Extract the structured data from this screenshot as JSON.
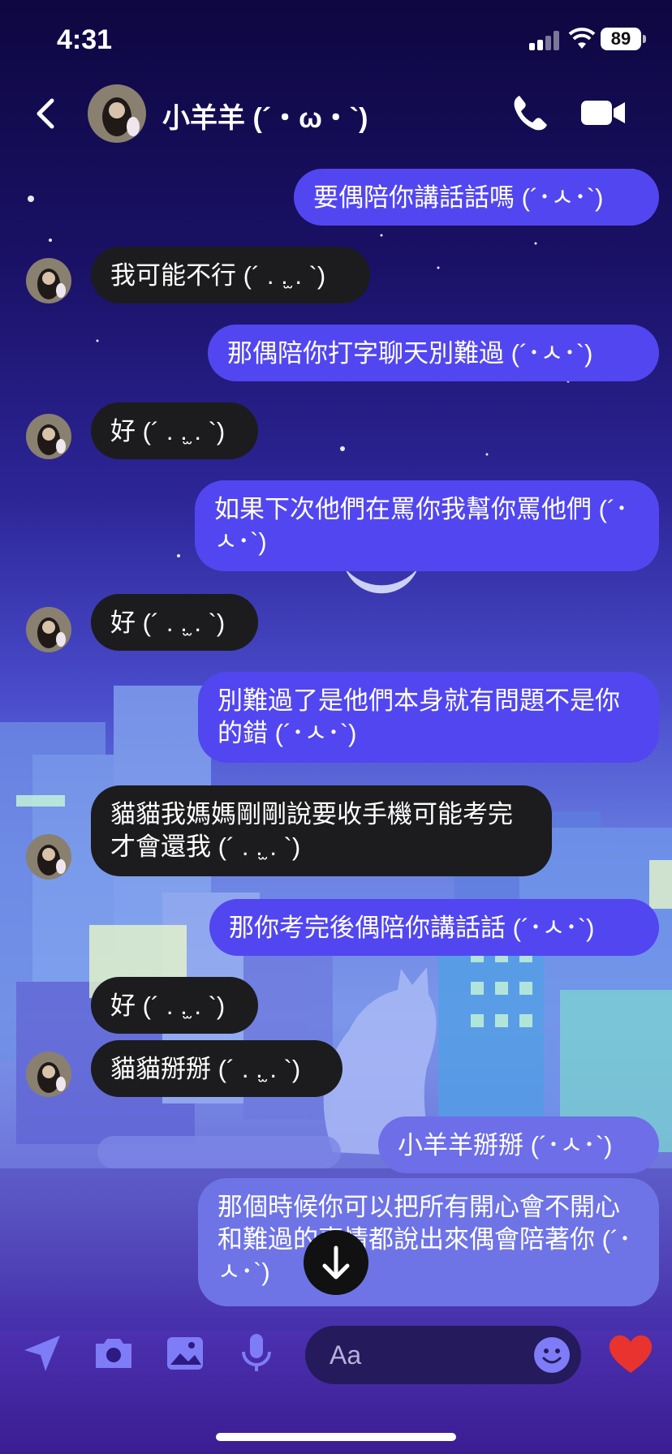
{
  "status_bar": {
    "time": "4:31",
    "battery": "89"
  },
  "header": {
    "contact_name": "小羊羊 (´・ω・`)"
  },
  "messages": [
    {
      "dir": "out",
      "text": "要偶陪你講話話嗎 (´･ㅅ･`)"
    },
    {
      "dir": "in",
      "text": "我可能不行 (´ . .̫ . `)"
    },
    {
      "dir": "out",
      "text": "那偶陪你打字聊天別難過 (´･ㅅ･`)"
    },
    {
      "dir": "in",
      "text": "好 (´ . .̫ . `)"
    },
    {
      "dir": "out",
      "text": "如果下次他們在罵你我幫你罵他們 (´･ㅅ･`)"
    },
    {
      "dir": "in",
      "text": "好 (´ . .̫ . `)"
    },
    {
      "dir": "out",
      "text": "別難過了是他們本身就有問題不是你的錯 (´･ㅅ･`)"
    },
    {
      "dir": "in",
      "text": "貓貓我媽媽剛剛說要收手機可能考完才會還我 (´ . .̫ . `)"
    },
    {
      "dir": "out",
      "text": "那你考完後偶陪你講話話 (´･ㅅ･`)"
    },
    {
      "dir": "in",
      "text": "好 (´ . .̫ . `)"
    },
    {
      "dir": "in",
      "text": "貓貓掰掰 (´ . .̫ . `)"
    },
    {
      "dir": "out",
      "text": "小羊羊掰掰 (´･ㅅ･`)"
    },
    {
      "dir": "out",
      "text": "那個時候你可以把所有開心會不開心和難過的事情都說出來偶會陪著你 (´･ㅅ･`)"
    }
  ],
  "composer": {
    "placeholder": "Aa"
  },
  "colors": {
    "outgoing_bubble": "#5246f0",
    "incoming_bubble": "#1c1c1e",
    "heart": "#e8332e"
  }
}
